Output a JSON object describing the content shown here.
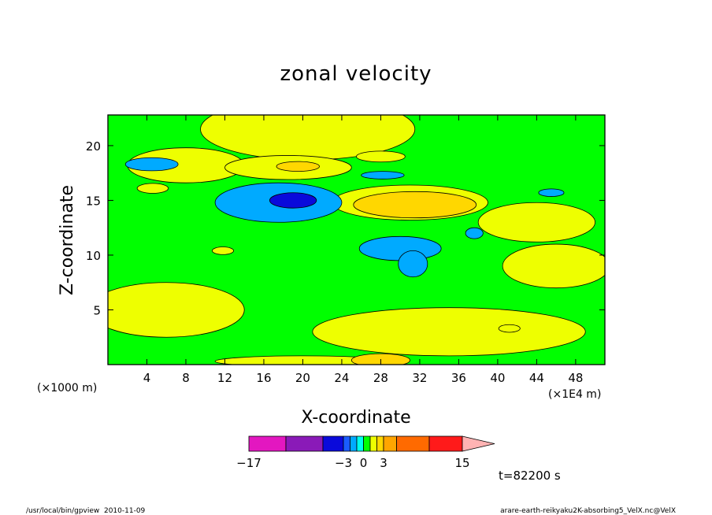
{
  "chart_data": {
    "type": "heatmap",
    "title": "zonal velocity",
    "xlabel": "X-coordinate",
    "ylabel": "Z-coordinate",
    "x_unit_label": "(×1000 m)",
    "y_unit_label": "(×1E4 m)",
    "xlim": [
      0,
      51
    ],
    "ylim": [
      0,
      22.8
    ],
    "x_ticks": [
      4,
      8,
      12,
      16,
      20,
      24,
      28,
      32,
      36,
      40,
      44,
      48
    ],
    "y_ticks": [
      5,
      10,
      15,
      20
    ],
    "time_label": "t=82200 s",
    "colorbar": {
      "levels": [
        -17,
        -12,
        -7,
        -3,
        -2,
        -1,
        0,
        1,
        2,
        3,
        5,
        10,
        15
      ],
      "tick_labels": [
        {
          "value": -17,
          "label": "−17"
        },
        {
          "value": -3,
          "label": "−3"
        },
        {
          "value": 0,
          "label": "0"
        },
        {
          "value": 3,
          "label": "3"
        },
        {
          "value": 15,
          "label": "15"
        }
      ],
      "colors": [
        "#e317c0",
        "#8a1ab8",
        "#0a0adb",
        "#1a5cff",
        "#00aaff",
        "#00ffee",
        "#00ff00",
        "#eeff00",
        "#ffd700",
        "#ffa500",
        "#ff6a00",
        "#ff1a1a",
        "#ff7f7f"
      ],
      "extend_color": "#ffb3b3"
    },
    "background_value": 0,
    "features": [
      {
        "type": "ellipse",
        "cx": 20.5,
        "cy": 21.5,
        "rx": 11,
        "ry": 2.8,
        "value": 1.5
      },
      {
        "type": "ellipse",
        "cx": 8,
        "cy": 18.2,
        "rx": 6,
        "ry": 1.6,
        "value": 1.5
      },
      {
        "type": "ellipse",
        "cx": 4.5,
        "cy": 18.3,
        "rx": 2.7,
        "ry": 0.6,
        "value": -1.5
      },
      {
        "type": "ellipse",
        "cx": 18.5,
        "cy": 18,
        "rx": 6.5,
        "ry": 1.1,
        "value": 1.5
      },
      {
        "type": "ellipse",
        "cx": 19.5,
        "cy": 18.1,
        "rx": 2.2,
        "ry": 0.45,
        "value": 2.5
      },
      {
        "type": "ellipse",
        "cx": 28,
        "cy": 19,
        "rx": 2.5,
        "ry": 0.5,
        "value": 1.5
      },
      {
        "type": "ellipse",
        "cx": 28.2,
        "cy": 17.3,
        "rx": 2.2,
        "ry": 0.35,
        "value": -1.5
      },
      {
        "type": "ellipse",
        "cx": 4.6,
        "cy": 16.1,
        "rx": 1.6,
        "ry": 0.45,
        "value": 1.5
      },
      {
        "type": "ellipse",
        "cx": 45.5,
        "cy": 15.7,
        "rx": 1.3,
        "ry": 0.35,
        "value": -1.5
      },
      {
        "type": "ellipse",
        "cx": 17.5,
        "cy": 14.8,
        "rx": 6.5,
        "ry": 1.8,
        "value": -1.5
      },
      {
        "type": "ellipse",
        "cx": 19,
        "cy": 15,
        "rx": 2.4,
        "ry": 0.7,
        "value": -3.5
      },
      {
        "type": "ellipse",
        "cx": 31,
        "cy": 14.8,
        "rx": 8,
        "ry": 1.6,
        "value": 1.5
      },
      {
        "type": "ellipse",
        "cx": 31.5,
        "cy": 14.6,
        "rx": 6.3,
        "ry": 1.2,
        "value": 2.5
      },
      {
        "type": "ellipse",
        "cx": 30,
        "cy": 10.6,
        "rx": 4.2,
        "ry": 1.1,
        "value": -1.5
      },
      {
        "type": "ellipse",
        "cx": 31.3,
        "cy": 9.2,
        "rx": 1.5,
        "ry": 1.2,
        "value": -1.5
      },
      {
        "type": "ellipse",
        "cx": 37.6,
        "cy": 12,
        "rx": 0.9,
        "ry": 0.5,
        "value": -1.5
      },
      {
        "type": "ellipse",
        "cx": 11.8,
        "cy": 10.4,
        "rx": 1.1,
        "ry": 0.35,
        "value": 1.5
      },
      {
        "type": "ellipse",
        "cx": 41.2,
        "cy": 3.3,
        "rx": 1.1,
        "ry": 0.35,
        "value": 1.5
      },
      {
        "type": "ellipse",
        "cx": 35,
        "cy": 3,
        "rx": 14,
        "ry": 2.2,
        "value": 1.5
      },
      {
        "type": "ellipse",
        "cx": 6,
        "cy": 5,
        "rx": 8,
        "ry": 2.5,
        "value": 1.5
      },
      {
        "type": "ellipse",
        "cx": 46,
        "cy": 9,
        "rx": 5.5,
        "ry": 2,
        "value": 1.5
      },
      {
        "type": "ellipse",
        "cx": 44,
        "cy": 13,
        "rx": 6,
        "ry": 1.8,
        "value": 1.5
      },
      {
        "type": "ellipse",
        "cx": 20,
        "cy": 0.3,
        "rx": 9,
        "ry": 0.5,
        "value": 1.5
      },
      {
        "type": "ellipse",
        "cx": 28,
        "cy": 0.4,
        "rx": 3,
        "ry": 0.6,
        "value": 2.5
      }
    ]
  },
  "footer": {
    "left": "/usr/local/bin/gpview  2010-11-09",
    "right": "arare-earth-reikyaku2K-absorbing5_VelX.nc@VelX"
  }
}
